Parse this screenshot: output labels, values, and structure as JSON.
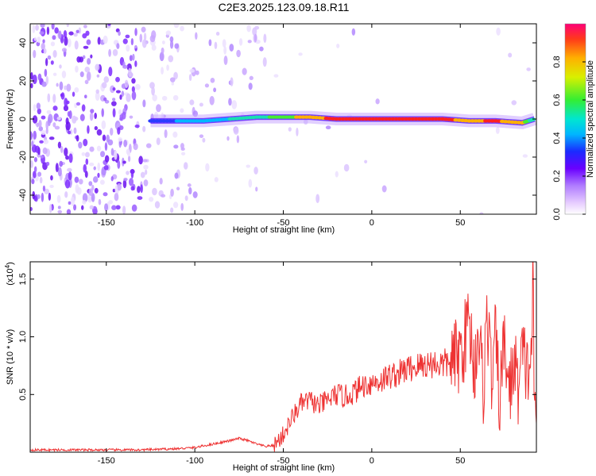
{
  "title": "C2E3.2025.123.09.18.R11",
  "chart_data": [
    {
      "type": "heatmap",
      "xlabel": "Height of straight line (km)",
      "ylabel": "Frequency (Hz)",
      "xlim": [
        -193,
        93
      ],
      "ylim": [
        -50,
        50
      ],
      "xticks": [
        -150,
        -100,
        -50,
        0,
        50
      ],
      "yticks": [
        -40,
        -20,
        0,
        20,
        40
      ],
      "colorbar": {
        "label": "Normalized spectral amplitude",
        "range": [
          0,
          1
        ],
        "ticks": [
          "0.0",
          "0.2",
          "0.4",
          "0.6",
          "0.8"
        ]
      },
      "ridge": [
        {
          "x": -125,
          "freq": -1,
          "amplitude": 0.25
        },
        {
          "x": -110,
          "freq": -1,
          "amplitude": 0.35
        },
        {
          "x": -95,
          "freq": -1,
          "amplitude": 0.45
        },
        {
          "x": -80,
          "freq": 0,
          "amplitude": 0.5
        },
        {
          "x": -65,
          "freq": 1,
          "amplitude": 0.55
        },
        {
          "x": -50,
          "freq": 1,
          "amplitude": 0.7
        },
        {
          "x": -35,
          "freq": 1,
          "amplitude": 0.8
        },
        {
          "x": -20,
          "freq": 0,
          "amplitude": 0.95
        },
        {
          "x": -5,
          "freq": 0,
          "amplitude": 0.9
        },
        {
          "x": 10,
          "freq": 0,
          "amplitude": 0.95
        },
        {
          "x": 25,
          "freq": 0,
          "amplitude": 0.95
        },
        {
          "x": 40,
          "freq": 0,
          "amplitude": 0.9
        },
        {
          "x": 55,
          "freq": -1,
          "amplitude": 0.85
        },
        {
          "x": 70,
          "freq": -1,
          "amplitude": 0.9
        },
        {
          "x": 85,
          "freq": -2,
          "amplitude": 0.8
        },
        {
          "x": 92,
          "freq": 0,
          "amplitude": 0.5
        }
      ]
    },
    {
      "type": "line",
      "xlabel": "Height of straight line (km)",
      "ylabel": "SNR (10 * v/v)",
      "scale_note": "(x10",
      "scale_exp": "4",
      "scale_close": ")",
      "xlim": [
        -193,
        93
      ],
      "ylim": [
        0,
        1.65
      ],
      "xticks": [
        -150,
        -100,
        -50,
        0,
        50
      ],
      "yticks": [
        "0.5",
        "1.0",
        "1.5"
      ],
      "color": "#ee3333",
      "series": [
        {
          "x": [
            -193,
            -170,
            -150,
            -130,
            -110,
            -100,
            -90,
            -80,
            -75,
            -70,
            -65,
            -60,
            -55,
            -50,
            -45,
            -40,
            -35,
            -30,
            -25,
            -20,
            -15,
            -10,
            -5,
            0,
            5,
            10,
            15,
            20,
            25,
            30,
            35,
            40,
            45,
            50,
            52,
            55,
            58,
            60,
            63,
            65,
            68,
            70,
            72,
            75,
            78,
            80,
            83,
            85,
            88,
            90,
            91,
            92,
            93
          ],
          "y": [
            0.02,
            0.02,
            0.02,
            0.02,
            0.03,
            0.04,
            0.07,
            0.1,
            0.12,
            0.1,
            0.07,
            0.05,
            0.06,
            0.15,
            0.3,
            0.42,
            0.45,
            0.4,
            0.45,
            0.5,
            0.48,
            0.52,
            0.58,
            0.6,
            0.62,
            0.66,
            0.68,
            0.72,
            0.74,
            0.76,
            0.77,
            0.76,
            0.78,
            0.85,
            0.95,
            1.15,
            0.7,
            1.1,
            0.55,
            1.2,
            0.6,
            1.0,
            0.45,
            0.95,
            0.5,
            0.8,
            0.55,
            0.85,
            0.7,
            0.8,
            1.5,
            0.3,
            0.25
          ]
        }
      ]
    }
  ]
}
